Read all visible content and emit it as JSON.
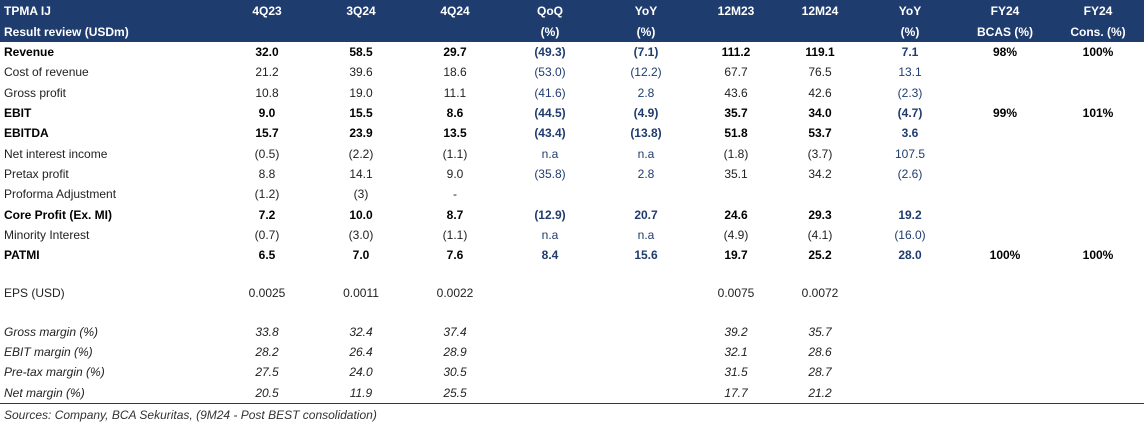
{
  "header": {
    "row1": [
      "TPMA IJ",
      "4Q23",
      "3Q24",
      "4Q24",
      "QoQ",
      "YoY",
      "12M23",
      "12M24",
      "YoY",
      "FY24",
      "FY24"
    ],
    "row2": [
      "Result review (USDm)",
      "",
      "",
      "",
      "(%)",
      "(%)",
      "",
      "",
      "(%)",
      "BCAS (%)",
      "Cons. (%)"
    ]
  },
  "rows": [
    {
      "style": "bold",
      "cells": [
        "Revenue",
        "32.0",
        "58.5",
        "29.7",
        "(49.3)",
        "(7.1)",
        "111.2",
        "119.1",
        "7.1",
        "98%",
        "100%"
      ]
    },
    {
      "style": "",
      "cells": [
        "Cost of revenue",
        "21.2",
        "39.6",
        "18.6",
        "(53.0)",
        "(12.2)",
        "67.7",
        "76.5",
        "13.1",
        "",
        ""
      ]
    },
    {
      "style": "",
      "cells": [
        "Gross profit",
        "10.8",
        "19.0",
        "11.1",
        "(41.6)",
        "2.8",
        "43.6",
        "42.6",
        "(2.3)",
        "",
        ""
      ]
    },
    {
      "style": "bold",
      "cells": [
        "EBIT",
        "9.0",
        "15.5",
        "8.6",
        "(44.5)",
        "(4.9)",
        "35.7",
        "34.0",
        "(4.7)",
        "99%",
        "101%"
      ]
    },
    {
      "style": "bold",
      "cells": [
        "EBITDA",
        "15.7",
        "23.9",
        "13.5",
        "(43.4)",
        "(13.8)",
        "51.8",
        "53.7",
        "3.6",
        "",
        ""
      ]
    },
    {
      "style": "",
      "cells": [
        "Net interest income",
        "(0.5)",
        "(2.2)",
        "(1.1)",
        "n.a",
        "n.a",
        "(1.8)",
        "(3.7)",
        "107.5",
        "",
        ""
      ]
    },
    {
      "style": "",
      "cells": [
        "Pretax profit",
        "8.8",
        "14.1",
        "9.0",
        "(35.8)",
        "2.8",
        "35.1",
        "34.2",
        "(2.6)",
        "",
        ""
      ]
    },
    {
      "style": "",
      "cells": [
        "Proforma Adjustment",
        "(1.2)",
        "(3)",
        "-",
        "",
        "",
        "",
        "",
        "",
        "",
        ""
      ]
    },
    {
      "style": "bold",
      "cells": [
        "Core Profit (Ex. MI)",
        "7.2",
        "10.0",
        "8.7",
        "(12.9)",
        "20.7",
        "24.6",
        "29.3",
        "19.2",
        "",
        ""
      ]
    },
    {
      "style": "",
      "cells": [
        "Minority Interest",
        "(0.7)",
        "(3.0)",
        "(1.1)",
        "n.a",
        "n.a",
        "(4.9)",
        "(4.1)",
        "(16.0)",
        "",
        ""
      ]
    },
    {
      "style": "bold",
      "cells": [
        "PATMI",
        "6.5",
        "7.0",
        "7.6",
        "8.4",
        "15.6",
        "19.7",
        "25.2",
        "28.0",
        "100%",
        "100%"
      ]
    },
    {
      "style": "spacer",
      "cells": [
        "",
        "",
        "",
        "",
        "",
        "",
        "",
        "",
        "",
        "",
        ""
      ]
    },
    {
      "style": "",
      "cells": [
        "EPS (USD)",
        "0.0025",
        "0.0011",
        "0.0022",
        "",
        "",
        "0.0075",
        "0.0072",
        "",
        "",
        ""
      ]
    },
    {
      "style": "spacer",
      "cells": [
        "",
        "",
        "",
        "",
        "",
        "",
        "",
        "",
        "",
        "",
        ""
      ]
    },
    {
      "style": "ital",
      "cells": [
        "Gross margin (%)",
        "33.8",
        "32.4",
        "37.4",
        "",
        "",
        "39.2",
        "35.7",
        "",
        "",
        ""
      ]
    },
    {
      "style": "ital",
      "cells": [
        "EBIT margin (%)",
        "28.2",
        "26.4",
        "28.9",
        "",
        "",
        "32.1",
        "28.6",
        "",
        "",
        ""
      ]
    },
    {
      "style": "ital",
      "cells": [
        "Pre-tax margin (%)",
        "27.5",
        "24.0",
        "30.5",
        "",
        "",
        "31.5",
        "28.7",
        "",
        "",
        ""
      ]
    },
    {
      "style": "ital last",
      "cells": [
        "Net margin (%)",
        "20.5",
        "11.9",
        "25.5",
        "",
        "",
        "17.7",
        "21.2",
        "",
        "",
        ""
      ]
    }
  ],
  "source": "Sources: Company, BCA Sekuritas, (9M24 - Post BEST consolidation)"
}
